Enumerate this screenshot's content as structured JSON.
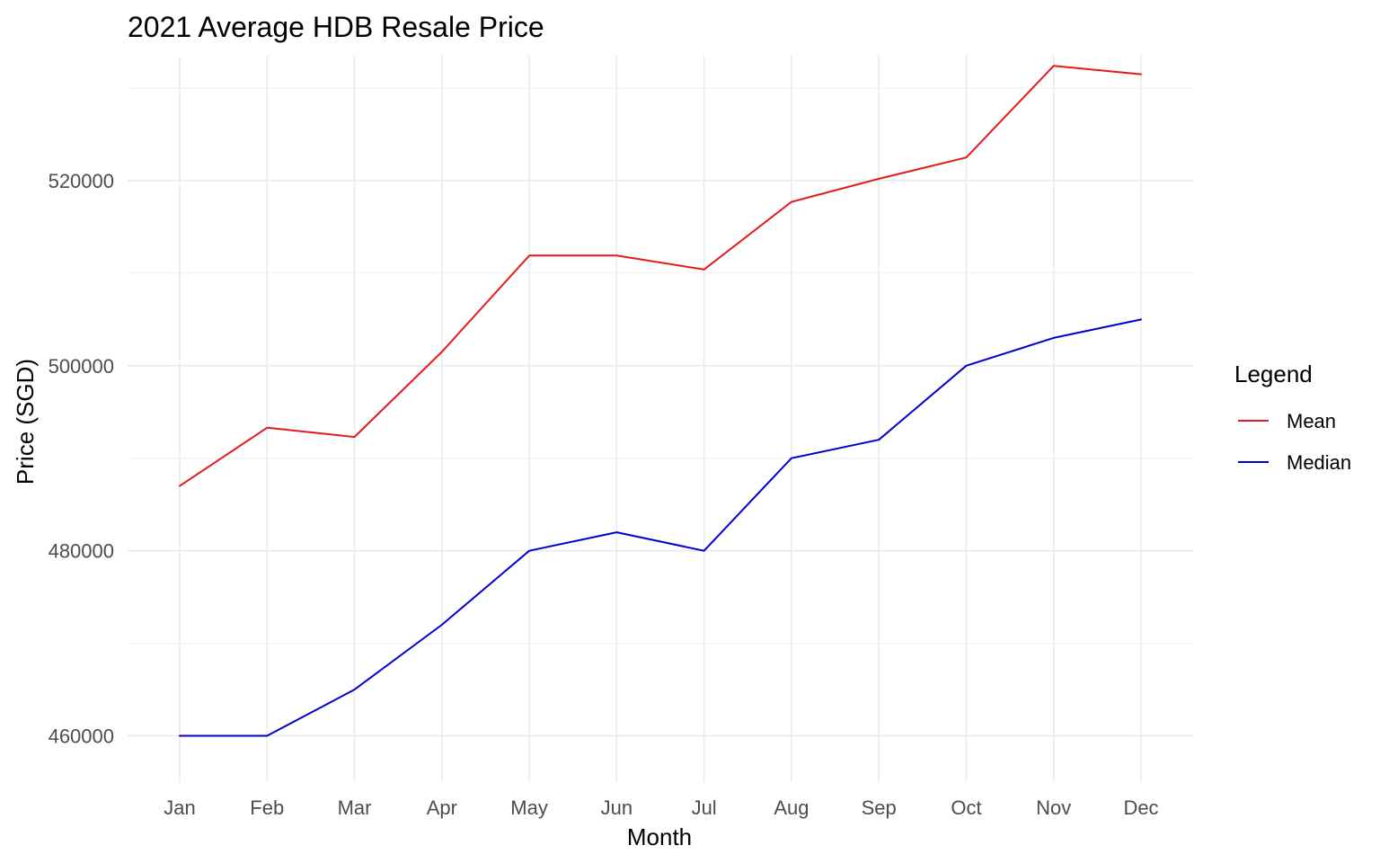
{
  "chart_data": {
    "type": "line",
    "title": "2021 Average HDB Resale Price",
    "xlabel": "Month",
    "ylabel": "Price (SGD)",
    "categories": [
      "Jan",
      "Feb",
      "Mar",
      "Apr",
      "May",
      "Jun",
      "Jul",
      "Aug",
      "Sep",
      "Oct",
      "Nov",
      "Dec"
    ],
    "ylim": [
      455000,
      533500
    ],
    "yticks": [
      460000,
      480000,
      500000,
      520000
    ],
    "yticks_minor": [
      470000,
      490000,
      510000,
      530000
    ],
    "grid": true,
    "legend": {
      "title": "Legend",
      "position": "right"
    },
    "series": [
      {
        "name": "Mean",
        "color": "#e41a1c",
        "values": [
          487000,
          493300,
          492300,
          501500,
          511900,
          511900,
          510400,
          517700,
          520200,
          522500,
          532400,
          531500
        ]
      },
      {
        "name": "Median",
        "color": "#0000cc",
        "values": [
          460000,
          460000,
          465000,
          472000,
          480000,
          482000,
          480000,
          490000,
          492000,
          500000,
          503000,
          505000
        ]
      }
    ]
  }
}
